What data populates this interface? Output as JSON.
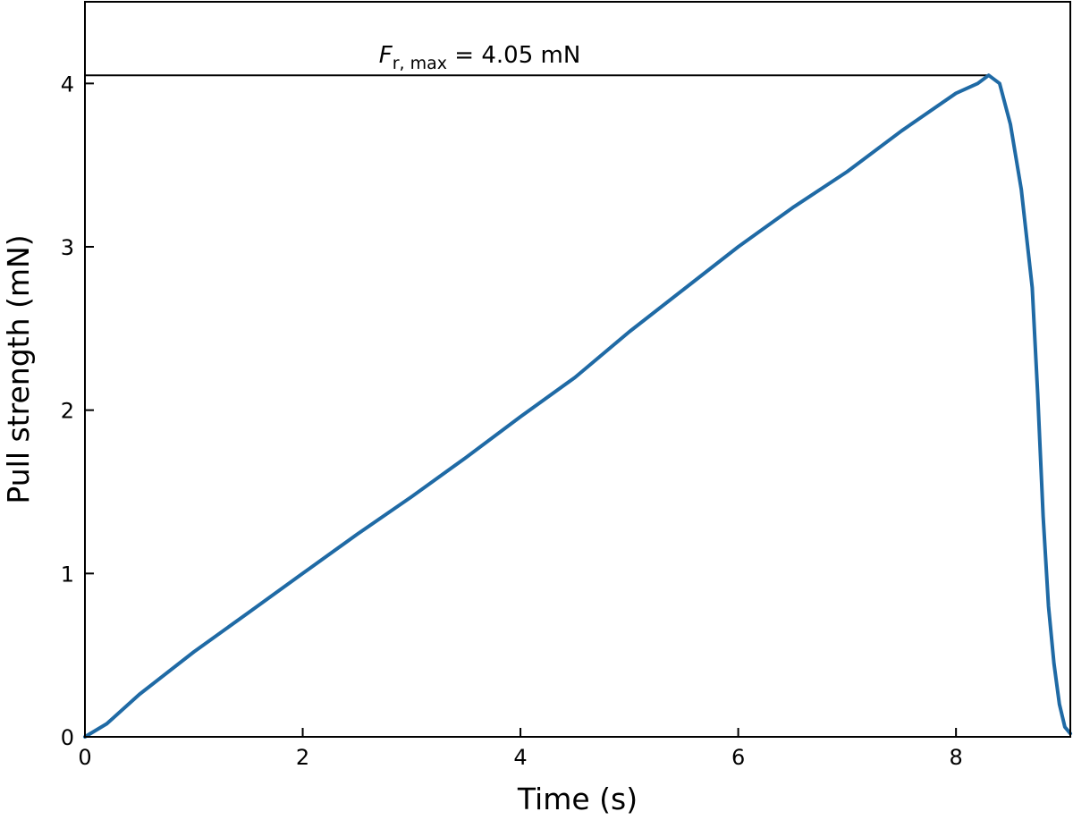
{
  "chart_data": {
    "type": "line",
    "title": "",
    "xlabel": "Time (s)",
    "ylabel": "Pull strength (mN)",
    "xlim": [
      0,
      9.05
    ],
    "ylim": [
      0,
      4.5
    ],
    "x_ticks": [
      0,
      2,
      4,
      6,
      8
    ],
    "y_ticks": [
      0,
      1,
      2,
      3,
      4
    ],
    "x_tick_labels": [
      "0",
      "2",
      "4",
      "6",
      "8"
    ],
    "y_tick_labels": [
      "0",
      "1",
      "2",
      "3",
      "4"
    ],
    "grid": false,
    "legend": "none",
    "series": [
      {
        "color": "#1f6aa5",
        "x": [
          0.0,
          0.2,
          0.5,
          1.0,
          1.5,
          2.0,
          2.5,
          3.0,
          3.5,
          4.0,
          4.5,
          5.0,
          5.5,
          6.0,
          6.5,
          7.0,
          7.5,
          8.0,
          8.2,
          8.3,
          8.4,
          8.5,
          8.6,
          8.7,
          8.75,
          8.8,
          8.85,
          8.9,
          8.95,
          9.0,
          9.05
        ],
        "y": [
          0.0,
          0.08,
          0.26,
          0.52,
          0.76,
          1.0,
          1.24,
          1.47,
          1.71,
          1.96,
          2.2,
          2.48,
          2.74,
          3.0,
          3.24,
          3.46,
          3.71,
          3.94,
          4.0,
          4.05,
          4.0,
          3.75,
          3.35,
          2.75,
          2.1,
          1.35,
          0.8,
          0.45,
          0.2,
          0.06,
          0.02
        ]
      }
    ],
    "annotations": [
      {
        "type": "hline",
        "y": 4.05,
        "x_start": 0,
        "x_end": 8.3,
        "color": "#000000",
        "label_symbol": "F",
        "label_subscript": "r, max",
        "label_value": " = 4.05 mN",
        "label_x": 2.7
      }
    ]
  }
}
